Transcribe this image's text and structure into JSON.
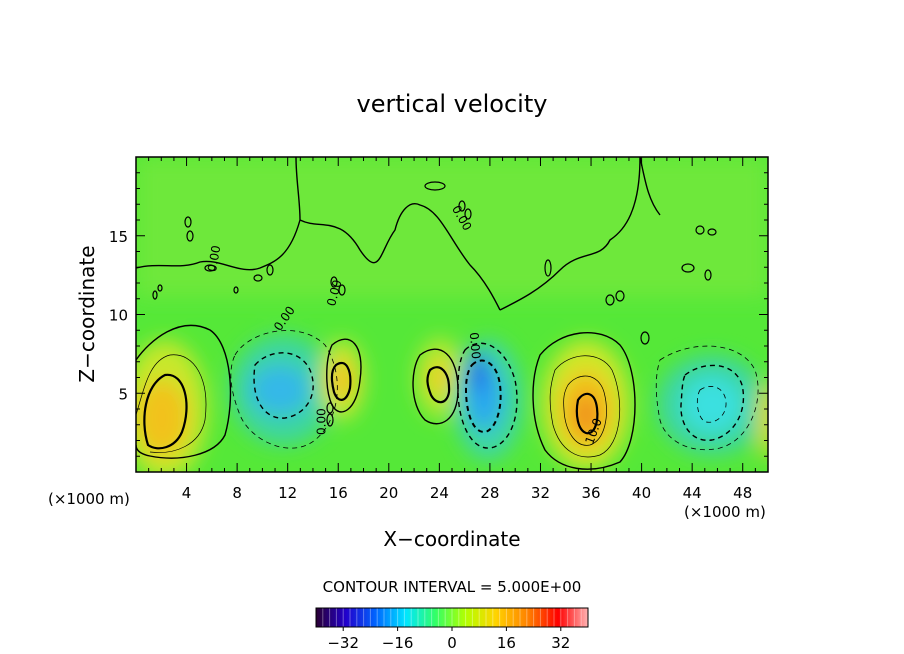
{
  "chart_data": {
    "type": "heatmap",
    "title": "vertical velocity",
    "xlabel": "X−coordinate",
    "ylabel": "Z−coordinate",
    "x_unit_left": "(×1000 m)",
    "x_unit_right": "(×1000 m)",
    "xlim": [
      0,
      50
    ],
    "ylim": [
      0,
      20
    ],
    "xticks": [
      4,
      8,
      12,
      16,
      20,
      24,
      28,
      32,
      36,
      40,
      44,
      48
    ],
    "yticks": [
      5,
      10,
      15
    ],
    "contour_interval_text": "CONTOUR INTERVAL = 5.000E+00",
    "contour_labels": [
      "0.00",
      "0.00",
      "0.00",
      "0.00",
      "0.00",
      "0.00",
      "10.0"
    ],
    "colorbar": {
      "vmin": -40,
      "vmax": 40,
      "ticks": [
        -32,
        -16,
        0,
        16,
        32
      ],
      "tick_labels": [
        "−32",
        "−16",
        "0",
        "16",
        "32"
      ],
      "colors": [
        "#2a0033",
        "#2200cc",
        "#0066ff",
        "#00e6ff",
        "#33ff66",
        "#b3ff00",
        "#ffd400",
        "#ff8000",
        "#ff0000",
        "#ffb3b3"
      ]
    },
    "cells": [
      {
        "x": 2,
        "z": 3.5,
        "w": 10
      },
      {
        "x": 12,
        "z": 5,
        "w": -12
      },
      {
        "x": 16.3,
        "z": 5.8,
        "w": 9
      },
      {
        "x": 24.5,
        "z": 5.8,
        "w": 7
      },
      {
        "x": 27,
        "z": 5.5,
        "w": -18
      },
      {
        "x": 35.5,
        "z": 4,
        "w": 14
      },
      {
        "x": 45.5,
        "z": 4.5,
        "w": -9
      }
    ]
  }
}
